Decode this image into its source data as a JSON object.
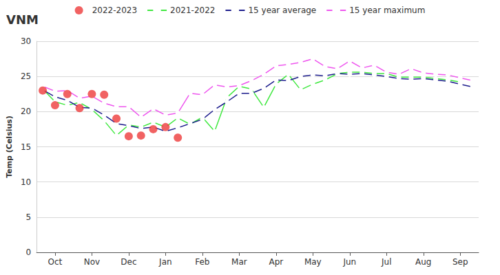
{
  "chart_data": {
    "type": "line",
    "title": "VNM",
    "y_label": "Temp (Celsius)",
    "categories": [
      null,
      "Oct",
      null,
      null,
      "Nov",
      null,
      null,
      "Dec",
      null,
      null,
      "Jan",
      null,
      null,
      "Feb",
      null,
      null,
      "Mar",
      null,
      null,
      "Apr",
      null,
      null,
      "May",
      null,
      null,
      "Jun",
      null,
      null,
      "Jul",
      null,
      null,
      "Aug",
      null,
      null,
      "Sep",
      null
    ],
    "ylim": [
      0,
      30
    ],
    "yticks": [
      0,
      5,
      10,
      15,
      20,
      25,
      30
    ],
    "grid": true,
    "legend": "top",
    "series": [
      {
        "name": "2022-2023",
        "type": "scatter",
        "marker": "circle",
        "color": "#ee3b3b",
        "values": [
          23.0,
          20.9,
          22.5,
          20.5,
          22.5,
          22.4,
          19.0,
          16.5,
          16.6,
          17.5,
          17.8,
          16.3,
          null,
          null,
          null,
          null,
          null,
          null,
          null,
          null,
          null,
          null,
          null,
          null,
          null,
          null,
          null,
          null,
          null,
          null,
          null,
          null,
          null,
          null,
          null,
          null
        ]
      },
      {
        "name": "2021-2022",
        "type": "line",
        "marker": "open_circle",
        "color": "#3ee83e",
        "values": [
          23.2,
          21.4,
          20.9,
          21.3,
          20.3,
          18.7,
          16.6,
          18.1,
          17.8,
          18.5,
          17.8,
          19.1,
          18.2,
          19.2,
          17.2,
          22.0,
          23.6,
          23.2,
          20.6,
          23.9,
          25.3,
          23.1,
          23.9,
          24.5,
          25.4,
          25.6,
          25.6,
          25.4,
          25.4,
          24.9,
          24.9,
          24.9,
          24.7,
          24.5,
          24.2,
          null
        ]
      },
      {
        "name": "15 year average",
        "type": "line",
        "marker": "open_circle",
        "color": "#1c1c8c",
        "values": [
          23.1,
          22.1,
          21.6,
          20.6,
          20.5,
          19.5,
          18.3,
          18.0,
          17.6,
          17.8,
          17.2,
          17.7,
          18.3,
          18.9,
          20.3,
          21.4,
          22.6,
          22.6,
          23.3,
          24.5,
          24.4,
          25.0,
          25.2,
          25.1,
          25.4,
          25.3,
          25.4,
          25.2,
          25.0,
          24.7,
          24.6,
          24.7,
          24.5,
          24.3,
          23.9,
          23.5
        ]
      },
      {
        "name": "15 year maximum",
        "type": "line",
        "marker": "open_circle",
        "color": "#ee55ee",
        "values": [
          23.6,
          22.9,
          23.0,
          21.9,
          22.2,
          21.2,
          20.7,
          20.7,
          19.2,
          20.4,
          19.5,
          19.8,
          22.6,
          22.4,
          23.8,
          23.5,
          23.7,
          24.4,
          25.3,
          26.5,
          26.7,
          27.0,
          27.5,
          26.4,
          26.1,
          27.2,
          26.2,
          26.6,
          25.6,
          25.3,
          26.1,
          25.5,
          25.3,
          25.2,
          24.8,
          24.4
        ]
      }
    ]
  }
}
